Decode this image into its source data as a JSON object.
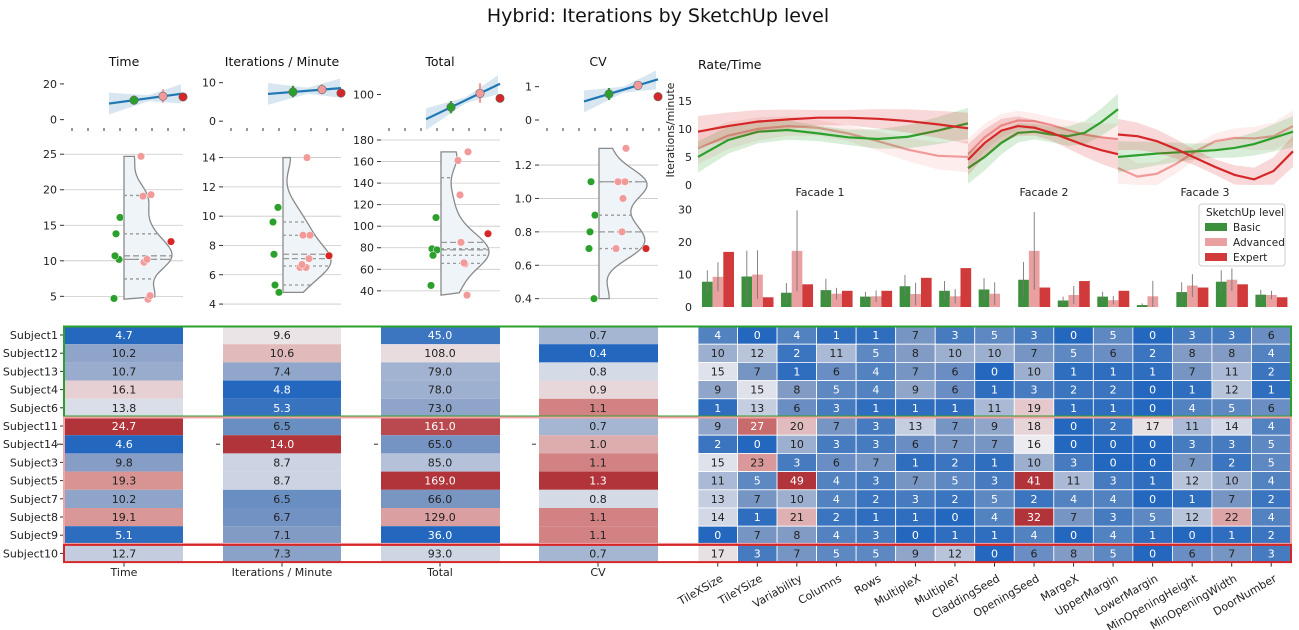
{
  "title": "Hybrid: Iterations by SketchUp level",
  "colors": {
    "basic": "#2ca02c",
    "advanced": "#f29a9a",
    "expert": "#d62728",
    "basic_bar": "#3c8f3c",
    "advanced_bar": "#eaa0a0",
    "expert_bar": "#d13a3a",
    "line": "#1f77b4",
    "violin_fill": "#eef4f7",
    "violin_edge": "#8a8a8a",
    "grp_basic": "#2ca02c",
    "grp_advanced": "#f4a3a8",
    "grp_expert": "#d62728"
  },
  "panels": {
    "time": "Time",
    "ipm": "Iterations / Minute",
    "total": "Total",
    "cv": "CV",
    "rate": "Rate/Time",
    "rate_ylabel": "Iterations/minute",
    "facades": [
      "Facade 1",
      "Facade 2",
      "Facade 3"
    ]
  },
  "legend": {
    "title": "SketchUp level",
    "entries": [
      "Basic",
      "Advanced",
      "Expert"
    ]
  },
  "chart_data": [
    {
      "type": "scatter",
      "name": "top_strip_panels",
      "panels": [
        {
          "title": "Time",
          "yticks": [
            0,
            20
          ],
          "ylim": [
            -3,
            25
          ],
          "points": [
            {
              "level": "Basic",
              "y": 10.9,
              "err": [
                8.4,
                13.4
              ]
            },
            {
              "level": "Advanced",
              "y": 13.1,
              "err": [
                9.5,
                17.0
              ]
            },
            {
              "level": "Expert",
              "y": 12.7
            }
          ]
        },
        {
          "title": "Iterations / Minute",
          "yticks": [
            0,
            10
          ],
          "ylim": [
            -1,
            12
          ],
          "points": [
            {
              "level": "Basic",
              "y": 7.6,
              "err": [
                6.2,
                9.2
              ]
            },
            {
              "level": "Advanced",
              "y": 8.2,
              "err": [
                7.0,
                9.6
              ]
            },
            {
              "level": "Expert",
              "y": 7.3
            }
          ]
        },
        {
          "title": "Total",
          "yticks": [
            100
          ],
          "ylim": [
            45,
            135
          ],
          "points": [
            {
              "level": "Basic",
              "y": 77,
              "err": [
                66,
                88
              ]
            },
            {
              "level": "Advanced",
              "y": 102,
              "err": [
                85,
                120
              ]
            },
            {
              "level": "Expert",
              "y": 93
            }
          ]
        },
        {
          "title": "CV",
          "yticks": [
            0,
            1
          ],
          "ylim": [
            -0.15,
            1.35
          ],
          "points": [
            {
              "level": "Basic",
              "y": 0.78,
              "err": [
                0.6,
                0.96
              ]
            },
            {
              "level": "Advanced",
              "y": 1.04,
              "err": [
                0.97,
                1.1
              ]
            },
            {
              "level": "Expert",
              "y": 0.7
            }
          ]
        }
      ]
    },
    {
      "type": "scatter",
      "name": "violin_panels",
      "panels": [
        {
          "key": "Time",
          "yticks": [
            5,
            10,
            15,
            20,
            25
          ],
          "ylim": [
            3.5,
            27
          ],
          "basic": [
            4.7,
            10.2,
            10.7,
            16.1,
            13.8
          ],
          "advanced": [
            24.7,
            4.6,
            9.8,
            19.3,
            10.2,
            19.1,
            5.1
          ],
          "expert": [
            12.7
          ]
        },
        {
          "key": "Iterations / Minute",
          "yticks": [
            4,
            6,
            8,
            10,
            12,
            14
          ],
          "ylim": [
            3.8,
            15.2
          ],
          "basic": [
            9.6,
            10.6,
            7.4,
            4.8,
            5.3
          ],
          "advanced": [
            6.5,
            14.0,
            8.7,
            8.7,
            6.5,
            6.7,
            7.1
          ],
          "expert": [
            7.3
          ]
        },
        {
          "key": "Total",
          "yticks": [
            40,
            60,
            80,
            100,
            120,
            140,
            160,
            180
          ],
          "ylim": [
            25,
            180
          ],
          "basic": [
            45,
            108,
            79,
            78,
            73
          ],
          "advanced": [
            161,
            65,
            85,
            169,
            66,
            129,
            36
          ],
          "expert": [
            93
          ]
        },
        {
          "key": "CV",
          "yticks": [
            0.4,
            0.6,
            0.8,
            1.0,
            1.2
          ],
          "ylim": [
            0.35,
            1.35
          ],
          "basic": [
            0.7,
            0.4,
            0.8,
            0.9,
            1.1
          ],
          "advanced": [
            0.7,
            1.0,
            1.1,
            1.3,
            0.8,
            1.1,
            1.1
          ],
          "expert": [
            0.7
          ]
        }
      ]
    },
    {
      "type": "line",
      "name": "rate_time",
      "ylim": [
        0,
        18
      ],
      "yticks": [
        0,
        5,
        10,
        15
      ],
      "facades": [
        {
          "name": "Facade 1",
          "basic": [
            5,
            8,
            9.5,
            9.8,
            9.2,
            8.5,
            8.2,
            8.6,
            9.7,
            11
          ],
          "advanced": [
            6.5,
            8.8,
            10,
            10.5,
            10.2,
            9.2,
            7.8,
            6.3,
            5.2,
            5
          ],
          "expert": [
            9.5,
            10.5,
            11.3,
            11.7,
            12,
            12,
            11.8,
            11.4,
            10.8,
            10.1
          ]
        },
        {
          "name": "Facade 2",
          "basic": [
            3,
            5,
            7.5,
            9.3,
            9.5,
            9,
            8.7,
            9.3,
            11.2,
            13.5
          ],
          "advanced": [
            5.5,
            8.5,
            10.6,
            11.5,
            11.4,
            10.7,
            9.8,
            9,
            8.5,
            8.2
          ],
          "expert": [
            4.5,
            7.5,
            9.7,
            10.5,
            10.2,
            9.3,
            8.2,
            7.1,
            6.2,
            5.5
          ]
        },
        {
          "name": "Facade 3",
          "basic": [
            5,
            5.3,
            5.6,
            5.8,
            6,
            6.2,
            6.6,
            7.3,
            8.4,
            9.5
          ],
          "advanced": [
            3,
            1.5,
            2,
            3.8,
            6,
            7.8,
            8.4,
            8.3,
            8.7,
            10.5
          ],
          "expert": [
            9,
            8.7,
            7.8,
            6.4,
            4.8,
            3.2,
            1.8,
            1,
            2.5,
            6
          ]
        }
      ]
    },
    {
      "type": "bar",
      "name": "parameter_bars",
      "categories": [
        "TileXSize",
        "TileYSize",
        "Variability",
        "Columns",
        "Rows",
        "MultipleX",
        "MultipleY",
        "CladdingSeed",
        "OpeningSeed",
        "MargeX",
        "UpperMargin",
        "LowerMargin",
        "MinOpeningHeight",
        "MinOpeningWidth",
        "DoorNumber"
      ],
      "ylim": [
        0,
        33
      ],
      "yticks": [
        0,
        10,
        20,
        30
      ],
      "series": [
        {
          "name": "Basic",
          "values": [
            7.8,
            9.4,
            4.4,
            5.2,
            3.2,
            6.4,
            5.0,
            5.4,
            8.4,
            2.0,
            3.2,
            0.6,
            4.6,
            7.8,
            3.8
          ],
          "err": [
            3.5,
            8,
            3,
            3.5,
            1.5,
            3.5,
            3.0,
            3.5,
            5.5,
            1.2,
            1.5,
            0.5,
            3,
            3.5,
            1.5
          ]
        },
        {
          "name": "Advanced",
          "values": [
            9.3,
            10.0,
            17.3,
            4.1,
            3.3,
            4.0,
            3.3,
            4.1,
            17.3,
            3.7,
            2.1,
            3.3,
            6.6,
            8.4,
            3.7
          ],
          "err": [
            4.5,
            7.5,
            12.5,
            1.8,
            1.8,
            3.5,
            2.2,
            3.5,
            12,
            2.8,
            1.3,
            4.8,
            3.5,
            3.5,
            1.3
          ]
        },
        {
          "name": "Expert",
          "values": [
            17,
            3,
            7,
            5,
            5,
            9,
            12,
            0,
            6,
            8,
            5,
            0,
            6,
            7,
            3
          ],
          "err": [
            0,
            0,
            0,
            0,
            0,
            0,
            0,
            0,
            0,
            0,
            0,
            0,
            0,
            0,
            0
          ]
        }
      ]
    },
    {
      "type": "heatmap",
      "name": "subject_tables",
      "subjects": [
        "Subject1",
        "Subject12",
        "Subject13",
        "Subject4",
        "Subject6",
        "Subject11",
        "Subject14",
        "Subject3",
        "Subject5",
        "Subject7",
        "Subject8",
        "Subject9",
        "Subject10"
      ],
      "groups": [
        {
          "level": "Basic",
          "rows": [
            0,
            4
          ]
        },
        {
          "level": "Advanced",
          "rows": [
            5,
            11
          ]
        },
        {
          "level": "Expert",
          "rows": [
            12,
            12
          ]
        }
      ],
      "metric_columns": [
        {
          "label": "Time",
          "values": [
            "4.7",
            "10.2",
            "10.7",
            "16.1",
            "13.8",
            "24.7",
            "4.6",
            "9.8",
            "19.3",
            "10.2",
            "19.1",
            "5.1",
            "12.7"
          ],
          "vmin": 4.6,
          "vmax": 24.7
        },
        {
          "label": "Iterations / Minute",
          "values": [
            "9.6",
            "10.6",
            "7.4",
            "4.8",
            "5.3",
            "6.5",
            "14.0",
            "8.7",
            "8.7",
            "6.5",
            "6.7",
            "7.1",
            "7.3"
          ],
          "vmin": 4.8,
          "vmax": 14.0
        },
        {
          "label": "Total",
          "values": [
            "45.0",
            "108.0",
            "79.0",
            "78.0",
            "73.0",
            "161.0",
            "65.0",
            "85.0",
            "169.0",
            "66.0",
            "129.0",
            "36.0",
            "93.0"
          ],
          "vmin": 36,
          "vmax": 169
        },
        {
          "label": "CV",
          "values": [
            "0.7",
            "0.4",
            "0.8",
            "0.9",
            "1.1",
            "0.7",
            "1.0",
            "1.1",
            "1.3",
            "0.8",
            "1.1",
            "1.1",
            "0.7"
          ],
          "vmin": 0.4,
          "vmax": 1.3
        }
      ],
      "param_matrix": [
        [
          4,
          0,
          4,
          1,
          1,
          7,
          3,
          5,
          3,
          0,
          5,
          0,
          3,
          3,
          6
        ],
        [
          10,
          12,
          2,
          11,
          5,
          8,
          10,
          10,
          7,
          5,
          6,
          2,
          8,
          8,
          4
        ],
        [
          15,
          7,
          1,
          6,
          4,
          7,
          6,
          0,
          10,
          1,
          1,
          1,
          7,
          11,
          2
        ],
        [
          9,
          15,
          8,
          5,
          4,
          9,
          6,
          1,
          3,
          2,
          2,
          0,
          1,
          12,
          1
        ],
        [
          1,
          13,
          6,
          3,
          1,
          1,
          1,
          11,
          19,
          1,
          1,
          0,
          4,
          5,
          6
        ],
        [
          9,
          27,
          20,
          7,
          3,
          13,
          7,
          9,
          18,
          0,
          2,
          17,
          11,
          14,
          4
        ],
        [
          2,
          0,
          10,
          3,
          3,
          6,
          7,
          7,
          16,
          0,
          0,
          0,
          3,
          3,
          5
        ],
        [
          15,
          23,
          3,
          6,
          7,
          1,
          2,
          1,
          10,
          3,
          0,
          0,
          7,
          2,
          5
        ],
        [
          11,
          5,
          49,
          4,
          3,
          7,
          5,
          3,
          41,
          11,
          3,
          1,
          12,
          10,
          4
        ],
        [
          13,
          7,
          10,
          4,
          2,
          3,
          2,
          5,
          2,
          4,
          4,
          0,
          1,
          7,
          2
        ],
        [
          14,
          1,
          21,
          2,
          1,
          1,
          0,
          4,
          32,
          7,
          3,
          5,
          12,
          22,
          4
        ],
        [
          0,
          7,
          8,
          4,
          3,
          0,
          1,
          1,
          4,
          0,
          4,
          1,
          0,
          1,
          2
        ],
        [
          17,
          3,
          7,
          5,
          5,
          9,
          12,
          0,
          6,
          8,
          5,
          0,
          6,
          7,
          3
        ]
      ]
    }
  ]
}
